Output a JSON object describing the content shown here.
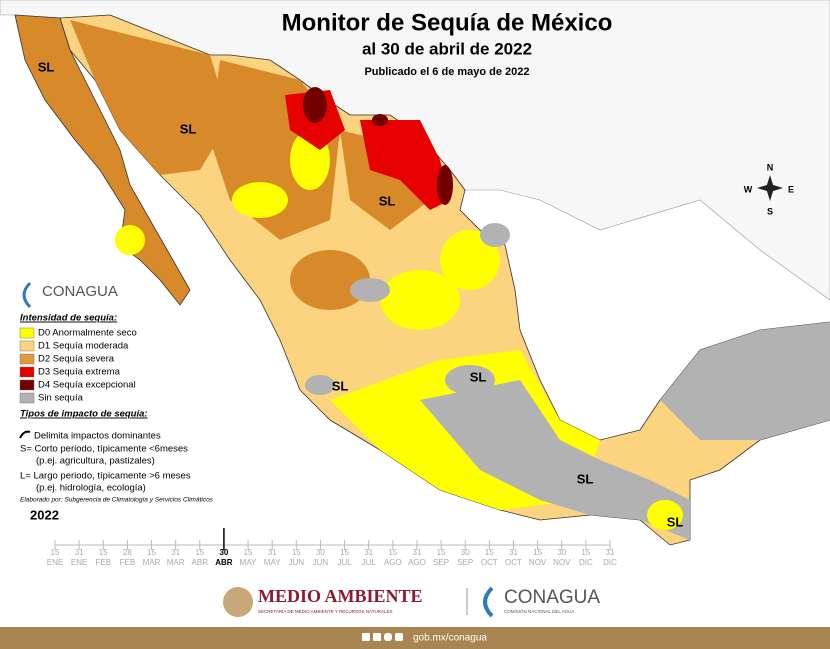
{
  "header": {
    "title": "Monitor de Sequía de México",
    "subtitle": "al 30 de abril de 2022",
    "published": "Publicado el 6 de mayo de 2022"
  },
  "compass": {
    "n": "N",
    "s": "S",
    "e": "E",
    "w": "W"
  },
  "map_labels": [
    "SL",
    "SL",
    "SL",
    "SL",
    "SL",
    "SL",
    "SL"
  ],
  "logo_small": "CONAGUA",
  "legend": {
    "title": "Intensidad de sequía:",
    "items": [
      {
        "label": "D0 Anormalmente seco",
        "color": "#ffff00"
      },
      {
        "label": "D1 Sequía moderada",
        "color": "#fcd37f"
      },
      {
        "label": "D2 Sequía severa",
        "color": "#e09a3a"
      },
      {
        "label": "D3 Sequía extrema",
        "color": "#e60000"
      },
      {
        "label": "D4 Sequía excepcional",
        "color": "#730000"
      },
      {
        "label": "Sin sequía",
        "color": "#b2b2b2"
      }
    ]
  },
  "impact": {
    "title": "Tipos de impacto de sequía:",
    "line": "Delimita impactos dominantes",
    "s_line": "S= Corto periodo, típicamente <6meses",
    "s_example": "(p.ej. agricultura, pastizales)",
    "l_line": "L= Largo periodo, típicamente >6 meses",
    "l_example": "(p.ej. hidrología, ecología)",
    "credit": "Elaborado por: Subgerencia de Climatología y Servicios Climáticos"
  },
  "timeline": {
    "year": "2022",
    "current": 7,
    "days": [
      "15",
      "31",
      "15",
      "28",
      "15",
      "31",
      "15",
      "30",
      "15",
      "31",
      "15",
      "30",
      "15",
      "31",
      "15",
      "31",
      "15",
      "30",
      "15",
      "31",
      "15",
      "30",
      "15",
      "31"
    ],
    "months": [
      "ENE",
      "ENE",
      "FEB",
      "FEB",
      "MAR",
      "MAR",
      "ABR",
      "ABR",
      "MAY",
      "MAY",
      "JUN",
      "JUN",
      "JUL",
      "JUL",
      "AGO",
      "AGO",
      "SEP",
      "SEP",
      "OCT",
      "OCT",
      "NOV",
      "NOV",
      "DIC",
      "DIC"
    ]
  },
  "footer": {
    "semarnat": "MEDIO AMBIENTE",
    "semarnat_sub": "SECRETARÍA DE MEDIO AMBIENTE Y RECURSOS NATURALES",
    "conagua": "CONAGUA",
    "conagua_sub": "COMISIÓN NACIONAL DEL AGUA",
    "url": "gob.mx/conagua"
  }
}
